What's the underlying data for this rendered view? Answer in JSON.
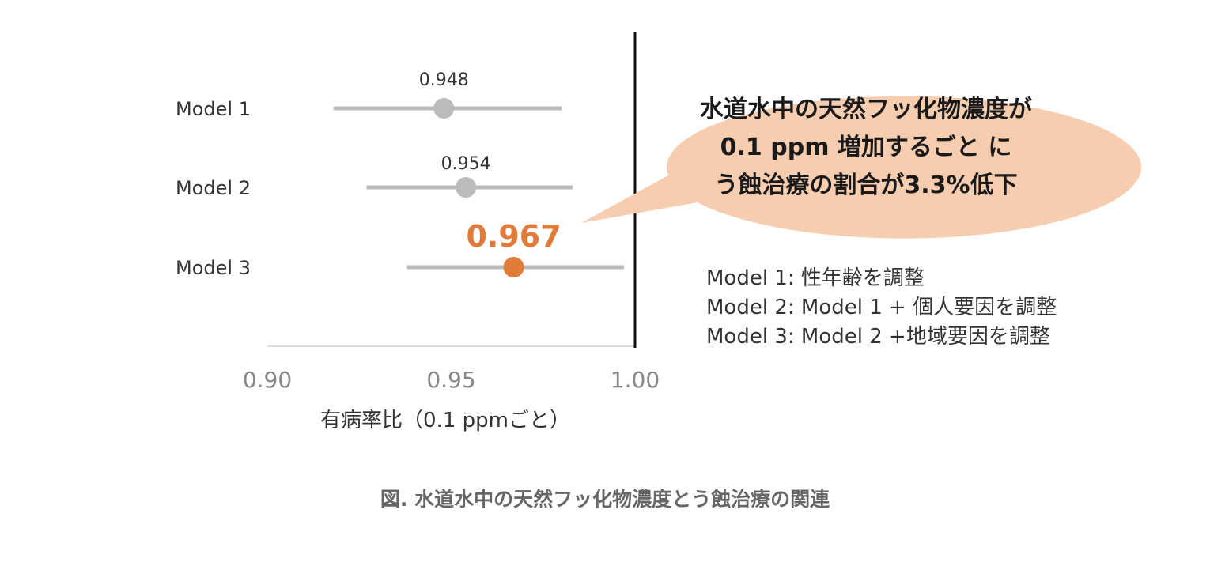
{
  "chart_data": {
    "type": "forest",
    "xlabel": "有病率比（0.1 ppmごと）",
    "xlim": [
      0.9,
      1.0
    ],
    "xticks": [
      "0.90",
      "0.95",
      "1.00"
    ],
    "reference_line": 1.0,
    "models": [
      {
        "name": "Model 1",
        "estimate": 0.948,
        "estimate_label": "0.948",
        "lower": 0.918,
        "upper": 0.98,
        "color": "#BBBBBB",
        "highlight": false
      },
      {
        "name": "Model 2",
        "estimate": 0.954,
        "estimate_label": "0.954",
        "lower": 0.927,
        "upper": 0.983,
        "color": "#BBBBBB",
        "highlight": false
      },
      {
        "name": "Model 3",
        "estimate": 0.967,
        "estimate_label": "0.967",
        "lower": 0.938,
        "upper": 0.997,
        "color": "#E07B3A",
        "highlight": true
      }
    ]
  },
  "callout": {
    "lines": [
      "水道水中の天然フッ化物濃度が",
      "0.1 ppm 増加するごと に",
      "う蝕治療の割合が3.3%低下"
    ],
    "fill": "#F7CDB0"
  },
  "legend": {
    "lines": [
      "Model 1: 性年齢を調整",
      "Model 2: Model 1 + 個人要因を調整",
      "Model 3: Model 2 +地域要因を調整"
    ]
  },
  "caption": "図. 水道水中の天然フッ化物濃度とう蝕治療の関連"
}
